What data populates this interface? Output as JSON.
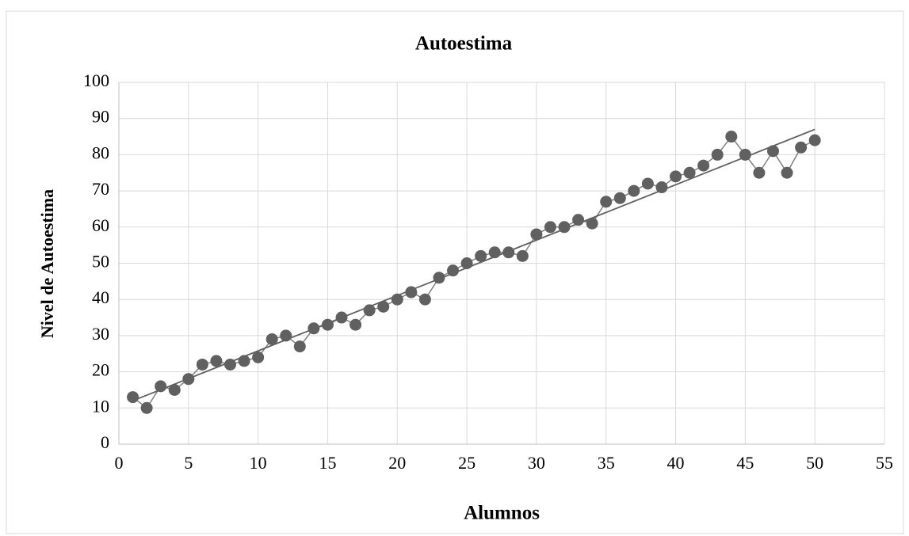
{
  "chart_data": {
    "type": "line",
    "title": "Autoestima",
    "x_label": "Alumnos",
    "y_label": "Nivel de Autoestima",
    "x": [
      1,
      2,
      3,
      4,
      5,
      6,
      7,
      8,
      9,
      10,
      11,
      12,
      13,
      14,
      15,
      16,
      17,
      18,
      19,
      20,
      21,
      22,
      23,
      24,
      25,
      26,
      27,
      28,
      29,
      30,
      31,
      32,
      33,
      34,
      35,
      36,
      37,
      38,
      39,
      40,
      41,
      42,
      43,
      44,
      45,
      46,
      47,
      48,
      49,
      50
    ],
    "values": [
      13,
      10,
      16,
      15,
      18,
      22,
      23,
      22,
      23,
      24,
      29,
      30,
      27,
      32,
      33,
      35,
      33,
      37,
      38,
      40,
      42,
      40,
      46,
      48,
      50,
      52,
      53,
      53,
      52,
      58,
      60,
      60,
      62,
      61,
      67,
      68,
      70,
      72,
      71,
      74,
      75,
      77,
      80,
      85,
      80,
      75,
      81,
      75,
      82,
      84
    ],
    "color": "#606060",
    "trendline": {
      "x": [
        1,
        50
      ],
      "values": [
        12,
        87
      ],
      "color": "#606060"
    },
    "xlim": [
      0,
      55
    ],
    "xticks": [
      0,
      5,
      10,
      15,
      20,
      25,
      30,
      35,
      40,
      45,
      50,
      55
    ],
    "ylim": [
      0,
      100
    ],
    "yticks": [
      0,
      10,
      20,
      30,
      40,
      50,
      60,
      70,
      80,
      90,
      100
    ],
    "grid": true
  }
}
